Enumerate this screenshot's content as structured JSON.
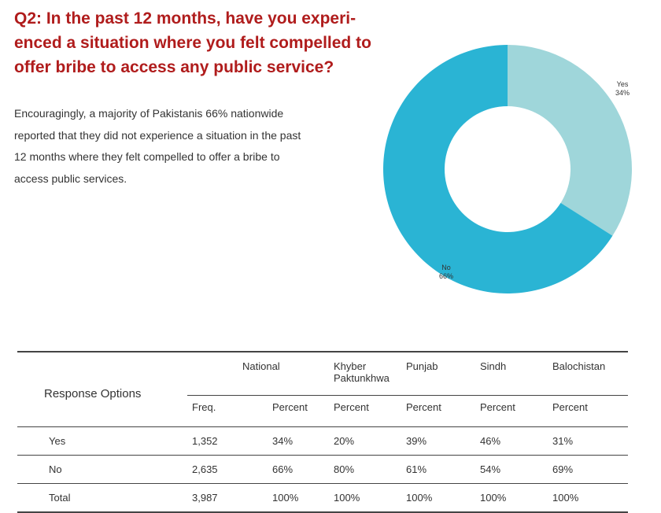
{
  "heading": {
    "lines": [
      "Q2: In the past 12 months, have you experi-",
      "enced a situation where you felt compelled to",
      "offer bribe to access any public service?"
    ]
  },
  "intro": {
    "lines": [
      "Encouragingly, a majority of Pakistanis 66% nationwide",
      "reported that they did not experience a situation in the past",
      "12 months where they felt compelled to offer a bribe to",
      "access public services."
    ]
  },
  "chart_data": {
    "type": "pie",
    "donut": true,
    "slices": [
      {
        "label": "Yes",
        "value": 34,
        "value_label": "34%",
        "color": "#9fd6da"
      },
      {
        "label": "No",
        "value": 66,
        "value_label": "66%",
        "color": "#2ab4d4"
      }
    ]
  },
  "table": {
    "response_options_label": "Response Options",
    "regions": {
      "national": "National",
      "kp_line1": "Khyber",
      "kp_line2": "Paktunkhwa",
      "punjab": "Punjab",
      "sindh": "Sindh",
      "balochistan": "Balochistan"
    },
    "subheaders": [
      "Freq.",
      "Percent",
      "Percent",
      "Percent",
      "Percent",
      "Percent"
    ],
    "rows": [
      {
        "label": "Yes",
        "cells": [
          "1,352",
          "34%",
          "20%",
          "39%",
          "46%",
          "31%"
        ]
      },
      {
        "label": "No",
        "cells": [
          "2,635",
          "66%",
          "80%",
          "61%",
          "54%",
          "69%"
        ]
      },
      {
        "label": "Total",
        "cells": [
          "3,987",
          "100%",
          "100%",
          "100%",
          "100%",
          "100%"
        ]
      }
    ]
  }
}
